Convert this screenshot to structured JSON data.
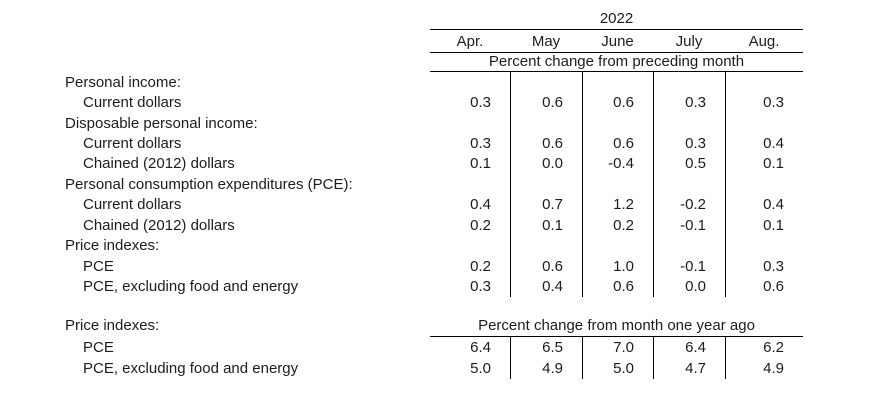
{
  "table": {
    "year": "2022",
    "months": [
      "Apr.",
      "May",
      "June",
      "July",
      "Aug."
    ],
    "sections": [
      {
        "header": "Percent change from preceding month",
        "rows": [
          {
            "label": "Personal income:",
            "indent": 0,
            "values": null
          },
          {
            "label": "Current dollars",
            "indent": 1,
            "values": [
              "0.3",
              "0.6",
              "0.6",
              "0.3",
              "0.3"
            ]
          },
          {
            "label": "Disposable personal income:",
            "indent": 0,
            "values": null
          },
          {
            "label": "Current dollars",
            "indent": 1,
            "values": [
              "0.3",
              "0.6",
              "0.6",
              "0.3",
              "0.4"
            ]
          },
          {
            "label": "Chained (2012) dollars",
            "indent": 1,
            "values": [
              "0.1",
              "0.0",
              "-0.4",
              "0.5",
              "0.1"
            ]
          },
          {
            "label": "Personal consumption expenditures (PCE):",
            "indent": 0,
            "values": null
          },
          {
            "label": "Current dollars",
            "indent": 1,
            "values": [
              "0.4",
              "0.7",
              "1.2",
              "-0.2",
              "0.4"
            ]
          },
          {
            "label": "Chained (2012) dollars",
            "indent": 1,
            "values": [
              "0.2",
              "0.1",
              "0.2",
              "-0.1",
              "0.1"
            ]
          },
          {
            "label": "Price indexes:",
            "indent": 0,
            "values": null
          },
          {
            "label": "PCE",
            "indent": 1,
            "values": [
              "0.2",
              "0.6",
              "1.0",
              "-0.1",
              "0.3"
            ]
          },
          {
            "label": "PCE, excluding food and energy",
            "indent": 1,
            "values": [
              "0.3",
              "0.4",
              "0.6",
              "0.0",
              "0.6"
            ]
          }
        ]
      },
      {
        "header": "Percent change from month one year ago",
        "header_label": "Price indexes:",
        "rows": [
          {
            "label": "PCE",
            "indent": 1,
            "values": [
              "6.4",
              "6.5",
              "7.0",
              "6.4",
              "6.2"
            ]
          },
          {
            "label": "PCE, excluding food and energy",
            "indent": 1,
            "values": [
              "5.0",
              "4.9",
              "5.0",
              "4.7",
              "4.9"
            ]
          }
        ]
      }
    ]
  },
  "colors": {
    "line": "#000000",
    "text": "#1c1c1c",
    "background": "#ffffff"
  }
}
